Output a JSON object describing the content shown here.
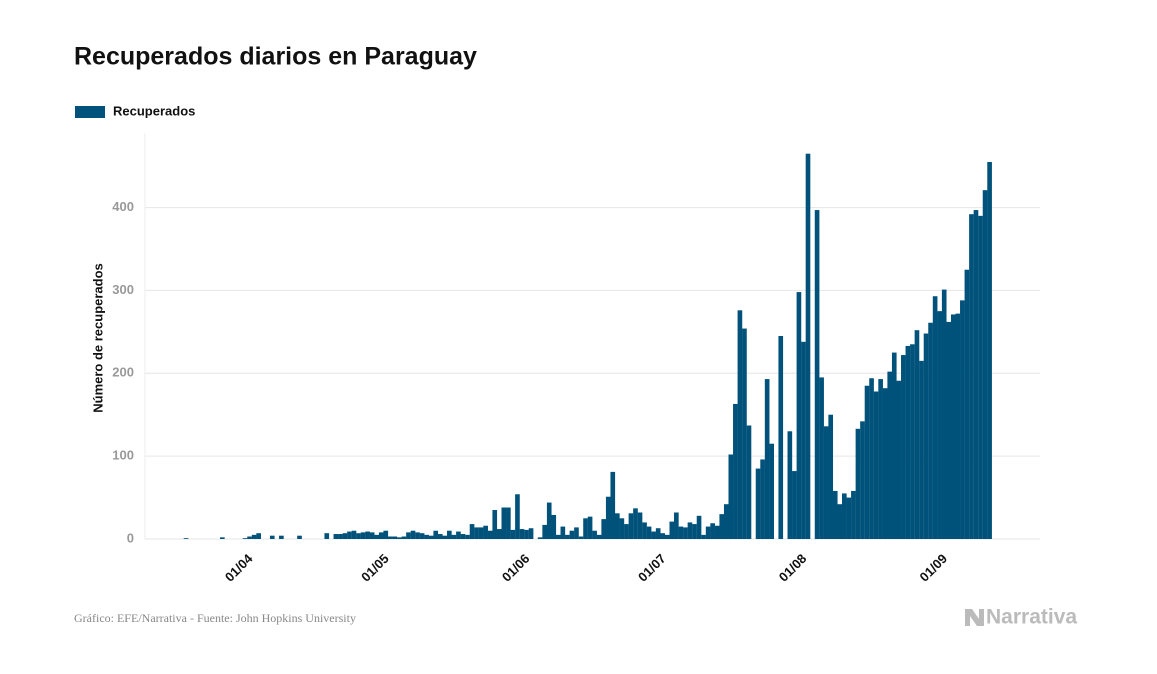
{
  "chart_data": {
    "type": "bar",
    "title": "Recuperados diarios en Paraguay",
    "ylabel": "Número de recuperados",
    "source": "Gráfico: EFE/Narrativa - Fuente: John Hopkins University",
    "logo": "Narrativa",
    "ylim": [
      0,
      490
    ],
    "yticks": [
      0,
      100,
      200,
      300,
      400
    ],
    "grid": true,
    "categories": [
      null,
      null,
      null,
      null,
      null,
      null,
      null,
      null,
      null,
      null,
      null,
      null,
      null,
      null,
      null,
      null,
      null,
      null,
      "01/04",
      null,
      null,
      null,
      null,
      null,
      null,
      null,
      null,
      null,
      null,
      null,
      null,
      null,
      null,
      null,
      null,
      null,
      null,
      null,
      null,
      null,
      null,
      null,
      null,
      null,
      null,
      null,
      null,
      null,
      "01/05",
      null,
      null,
      null,
      null,
      null,
      null,
      null,
      null,
      null,
      null,
      null,
      null,
      null,
      null,
      null,
      null,
      null,
      null,
      null,
      null,
      null,
      null,
      null,
      null,
      null,
      null,
      null,
      null,
      null,
      null,
      "01/06",
      null,
      null,
      null,
      null,
      null,
      null,
      null,
      null,
      null,
      null,
      null,
      null,
      null,
      null,
      null,
      null,
      null,
      null,
      null,
      null,
      null,
      null,
      null,
      null,
      null,
      null,
      null,
      null,
      null,
      "01/07",
      null,
      null,
      null,
      null,
      null,
      null,
      null,
      null,
      null,
      null,
      null,
      null,
      null,
      null,
      null,
      null,
      null,
      null,
      null,
      null,
      null,
      null,
      null,
      null,
      null,
      null,
      null,
      null,
      null,
      null,
      "01/08",
      null,
      null,
      null,
      null,
      null,
      null,
      null,
      null,
      null,
      null,
      null,
      null,
      null,
      null,
      null,
      null,
      null,
      null,
      null,
      null,
      null,
      null,
      null,
      null,
      null,
      null,
      null,
      null,
      null,
      null,
      "01/09",
      null,
      null,
      null,
      null,
      null,
      null,
      null,
      null,
      null,
      null,
      null
    ],
    "series": [
      {
        "name": "Recuperados",
        "color": "#01527a",
        "values": [
          0,
          0,
          0,
          0,
          0,
          1,
          0,
          0,
          0,
          0,
          0,
          0,
          0,
          2,
          0,
          0,
          0,
          0,
          1,
          3,
          5,
          7,
          0,
          0,
          4,
          0,
          4,
          0,
          0,
          0,
          4,
          0,
          0,
          0,
          0,
          0,
          7,
          0,
          6,
          6,
          7,
          9,
          10,
          7,
          8,
          9,
          8,
          5,
          8,
          10,
          3,
          3,
          2,
          3,
          8,
          10,
          8,
          7,
          5,
          4,
          10,
          6,
          4,
          10,
          5,
          9,
          6,
          5,
          18,
          14,
          14,
          16,
          10,
          35,
          12,
          38,
          38,
          11,
          54,
          12,
          11,
          13,
          0,
          2,
          17,
          44,
          29,
          5,
          15,
          5,
          10,
          14,
          3,
          25,
          27,
          10,
          5,
          24,
          51,
          81,
          31,
          25,
          18,
          31,
          37,
          32,
          20,
          15,
          9,
          13,
          7,
          5,
          21,
          32,
          15,
          14,
          20,
          18,
          28,
          5,
          15,
          19,
          16,
          30,
          42,
          102,
          163,
          276,
          254,
          137,
          0,
          85,
          96,
          193,
          115,
          0,
          245,
          0,
          130,
          82,
          298,
          238,
          465,
          0,
          397,
          195,
          136,
          150,
          58,
          42,
          55,
          50,
          58,
          133,
          142,
          185,
          194,
          178,
          193,
          182,
          202,
          225,
          191,
          222,
          233,
          235,
          252,
          215,
          248,
          261,
          293,
          275,
          301,
          262,
          271,
          272,
          288,
          325,
          392,
          397,
          390,
          421,
          455
        ]
      }
    ]
  }
}
